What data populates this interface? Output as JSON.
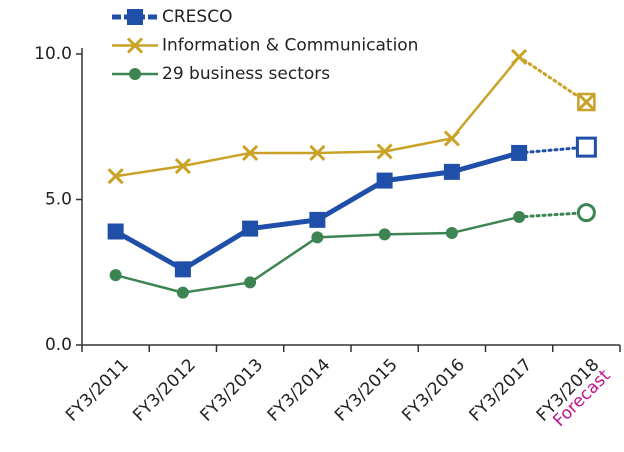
{
  "chart_data": {
    "type": "line",
    "categories": [
      "FY3/2011",
      "FY3/2012",
      "FY3/2013",
      "FY3/2014",
      "FY3/2015",
      "FY3/2016",
      "FY3/2017",
      "FY3/2018"
    ],
    "forecast": {
      "label": "Forecast",
      "index": 7,
      "color": "#c0148c"
    },
    "series": [
      {
        "name": "CRESCO",
        "color": "#1f4fa8",
        "marker": "square",
        "values": [
          3.9,
          2.6,
          4.0,
          4.3,
          5.65,
          5.95,
          6.6,
          6.8
        ]
      },
      {
        "name": "Information & Communication",
        "color": "#c9a227",
        "marker": "x",
        "values": [
          5.8,
          6.15,
          6.6,
          6.6,
          6.65,
          7.1,
          9.9,
          8.35
        ]
      },
      {
        "name": "29 business sectors",
        "color": "#3c8553",
        "marker": "circle",
        "values": [
          2.4,
          1.8,
          2.15,
          3.7,
          3.8,
          3.85,
          4.4,
          4.55
        ]
      }
    ],
    "ylim": [
      0,
      10
    ],
    "yticks": [
      {
        "value": 0,
        "label": "0.0"
      },
      {
        "value": 5,
        "label": "5.0"
      },
      {
        "value": 10,
        "label": "10.0"
      }
    ],
    "grid": false,
    "legend": "top"
  }
}
